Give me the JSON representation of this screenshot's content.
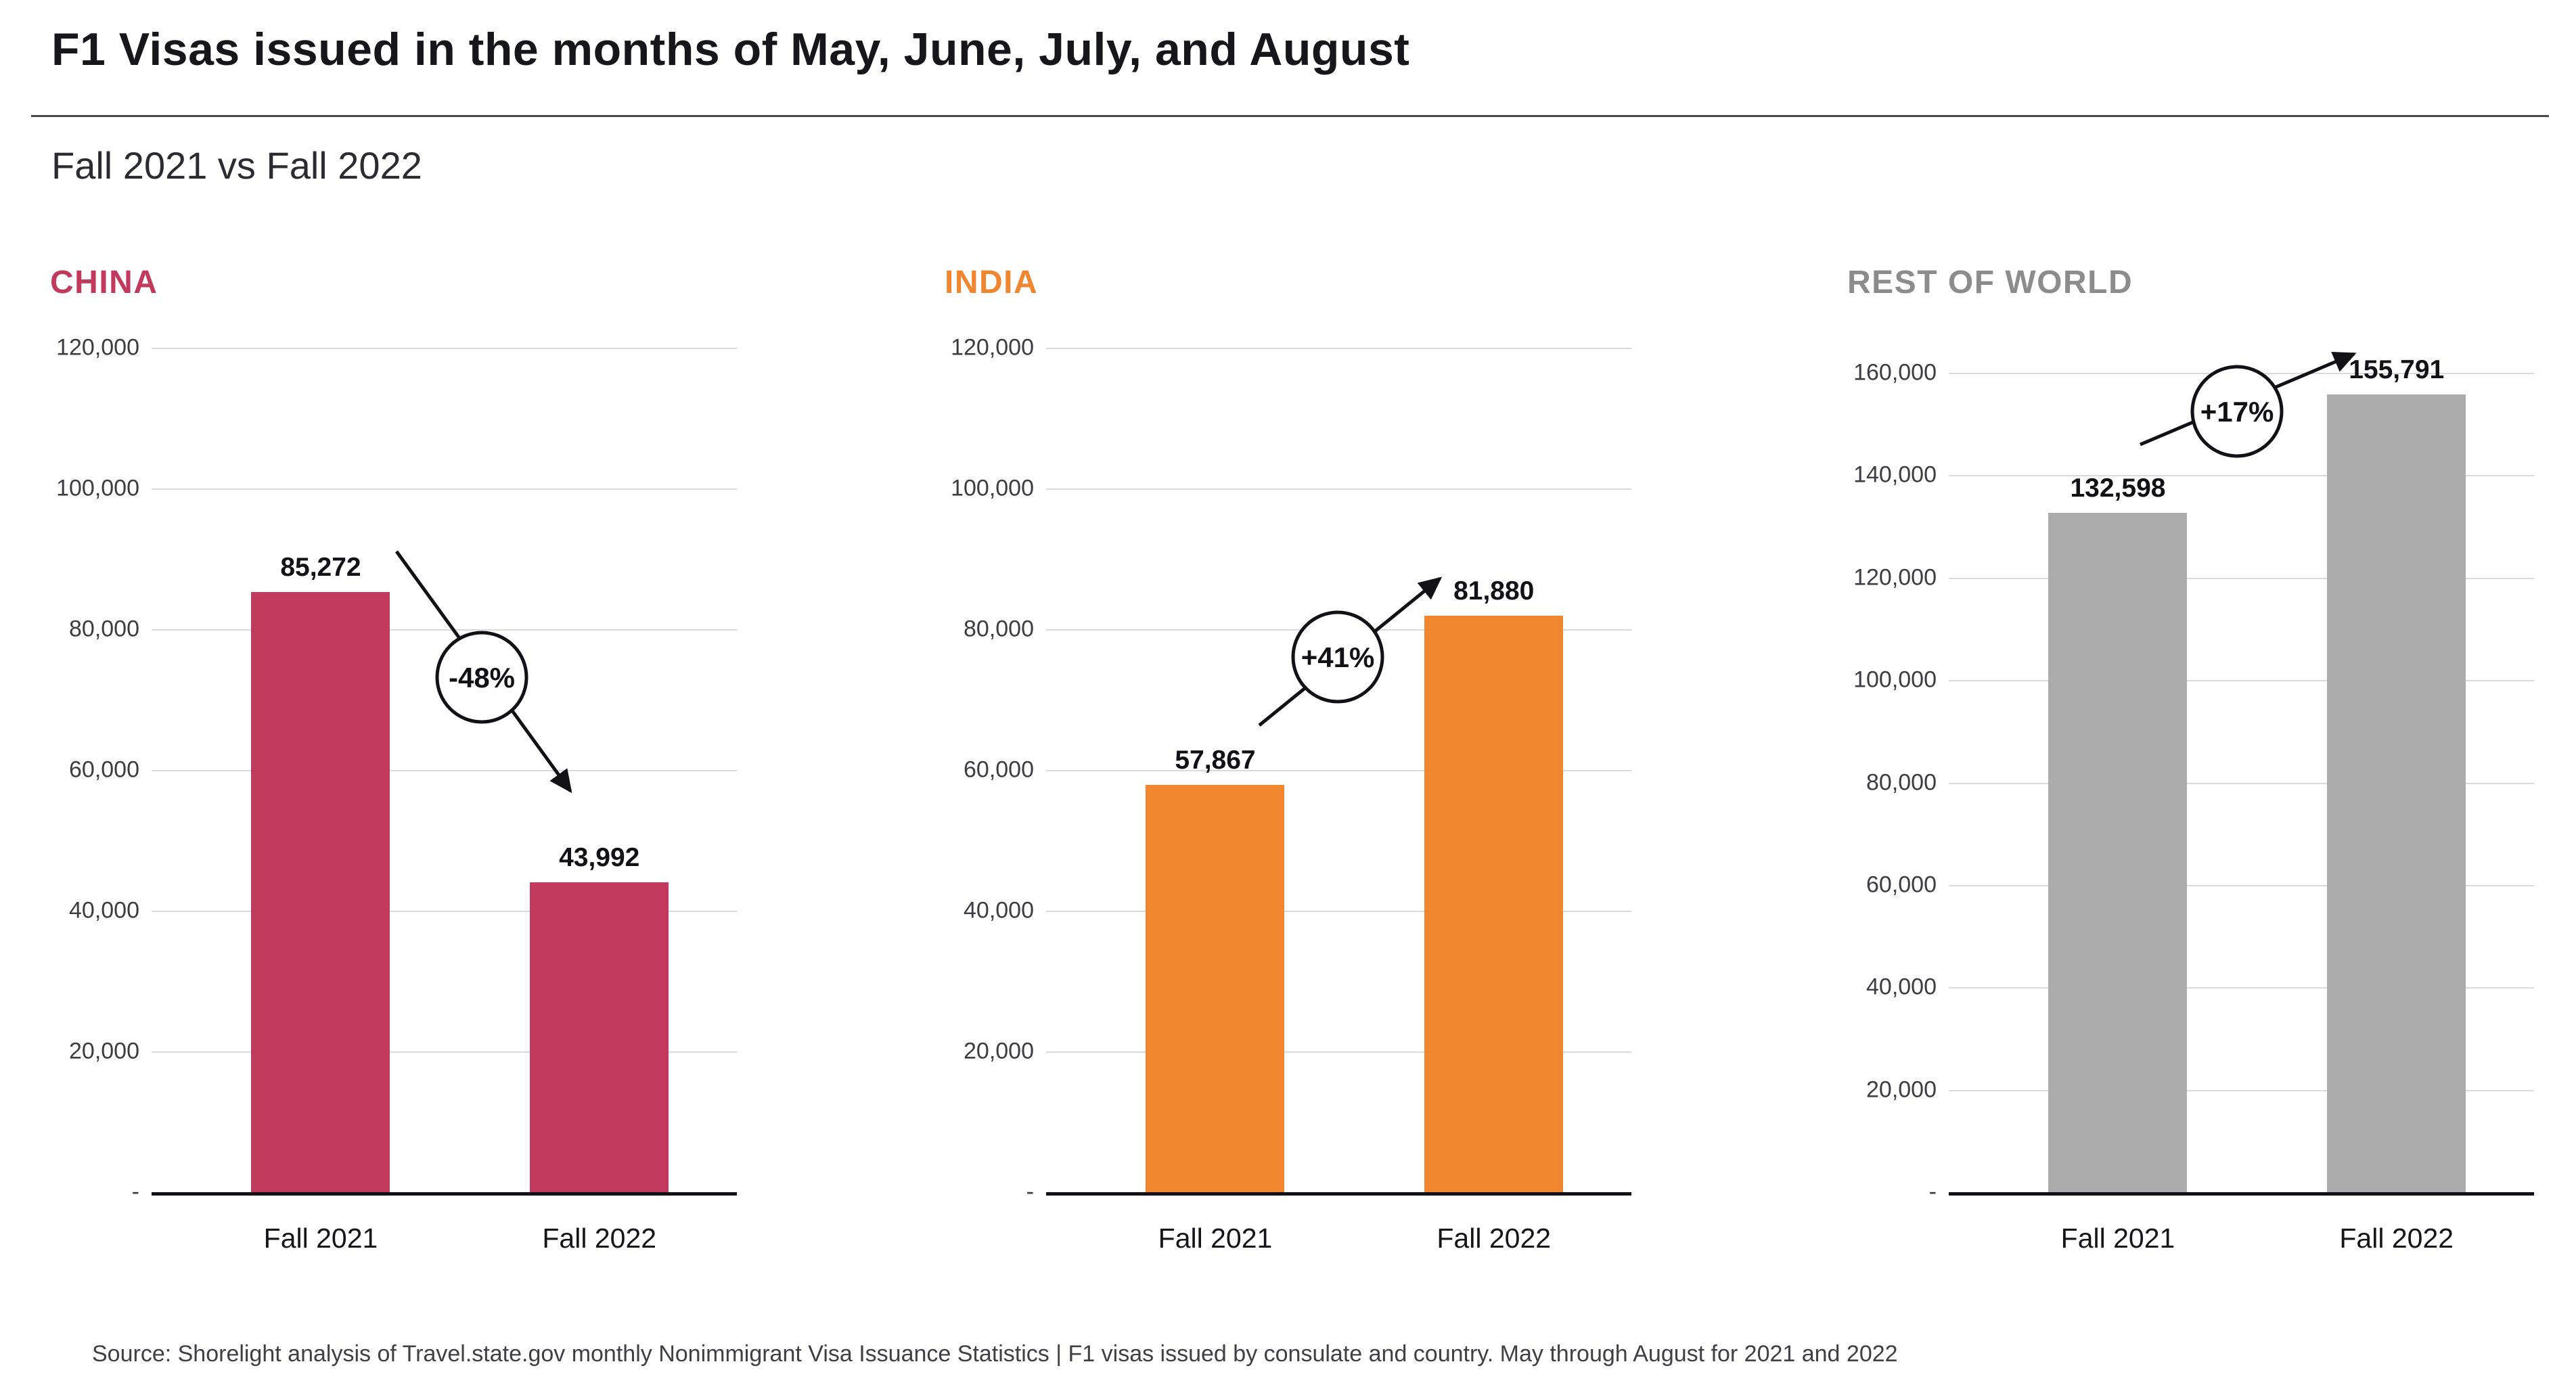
{
  "page": {
    "title": "F1 Visas issued in the months of May, June, July, and August",
    "subtitle": "Fall 2021 vs Fall 2022",
    "source": "Source: Shorelight analysis of Travel.state.gov monthly Nonimmigrant Visa Issuance Statistics | F1 visas issued by consulate and country. May through August for 2021 and 2022"
  },
  "chart_data": [
    {
      "type": "bar",
      "title": "CHINA",
      "title_color": "#c13a5e",
      "bar_color": "#c13a5e",
      "categories": [
        "Fall 2021",
        "Fall 2022"
      ],
      "values": [
        85272,
        43992
      ],
      "value_labels": [
        "85,272",
        "43,992"
      ],
      "change": {
        "label": "-48%",
        "direction": "down"
      },
      "ylim": [
        0,
        120000
      ],
      "ytick_step": 20000,
      "ytick_labels": [
        "-",
        "20,000",
        "40,000",
        "60,000",
        "80,000",
        "100,000",
        "120,000"
      ],
      "grid": true,
      "legend": false
    },
    {
      "type": "bar",
      "title": "INDIA",
      "title_color": "#f0862f",
      "bar_color": "#f0862f",
      "categories": [
        "Fall 2021",
        "Fall 2022"
      ],
      "values": [
        57867,
        81880
      ],
      "value_labels": [
        "57,867",
        "81,880"
      ],
      "change": {
        "label": "+41%",
        "direction": "up"
      },
      "ylim": [
        0,
        120000
      ],
      "ytick_step": 20000,
      "ytick_labels": [
        "-",
        "20,000",
        "40,000",
        "60,000",
        "80,000",
        "100,000",
        "120,000"
      ],
      "grid": true,
      "legend": false
    },
    {
      "type": "bar",
      "title": "REST OF WORLD",
      "title_color": "#8c8c8c",
      "bar_color": "#acacac",
      "categories": [
        "Fall 2021",
        "Fall 2022"
      ],
      "values": [
        132598,
        155791
      ],
      "value_labels": [
        "132,598",
        "155,791"
      ],
      "change": {
        "label": "+17%",
        "direction": "up"
      },
      "ylim": [
        0,
        160000
      ],
      "ytick_step": 20000,
      "ytick_labels": [
        "-",
        "20,000",
        "40,000",
        "60,000",
        "80,000",
        "100,000",
        "120,000",
        "140,000",
        "160,000"
      ],
      "grid": true,
      "legend": false
    }
  ]
}
